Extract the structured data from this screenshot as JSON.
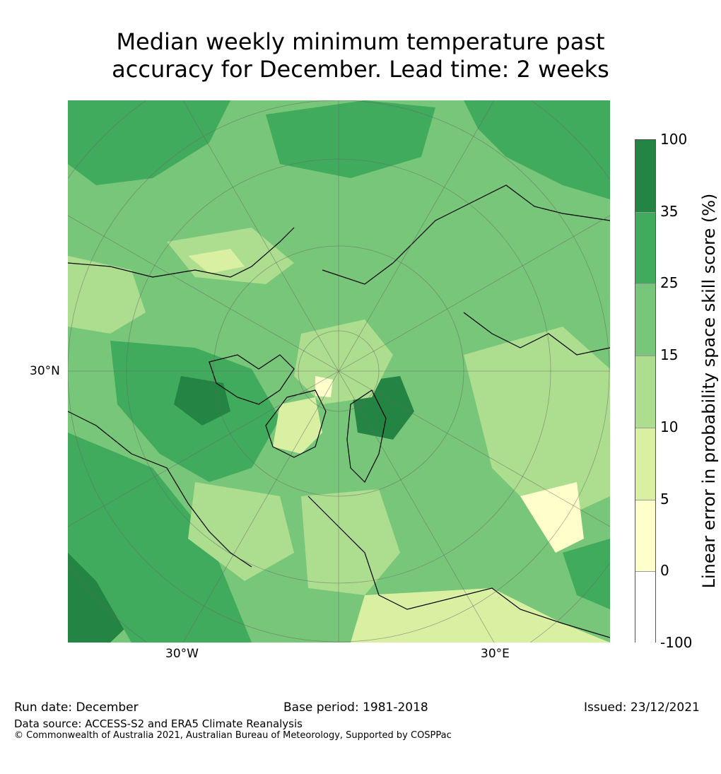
{
  "title_line1": "Median weekly minimum temperature past",
  "title_line2": "accuracy for December. Lead time: 2 weeks",
  "axis": {
    "lat_label": "30°N",
    "lon_west": "30°W",
    "lon_east": "30°E"
  },
  "colorbar": {
    "label": "Linear error in probability space skill score (%)",
    "ticks": [
      "100",
      "35",
      "25",
      "15",
      "10",
      "5",
      "0",
      "-100"
    ],
    "colors": [
      "#238443",
      "#41ab5d",
      "#78c679",
      "#addd8e",
      "#d9f0a3",
      "#ffffcc",
      "#ffffff"
    ]
  },
  "footer": {
    "run_date": "Run date: December",
    "base_period": "Base period: 1981-2018",
    "issued": "Issued: 23/12/2021",
    "data_source": "Data source: ACCESS-S2 and ERA5 Climate Reanalysis",
    "copyright": "© Commonwealth of Australia 2021, Australian Bureau of Meteorology, Supported by COSPPac"
  }
}
